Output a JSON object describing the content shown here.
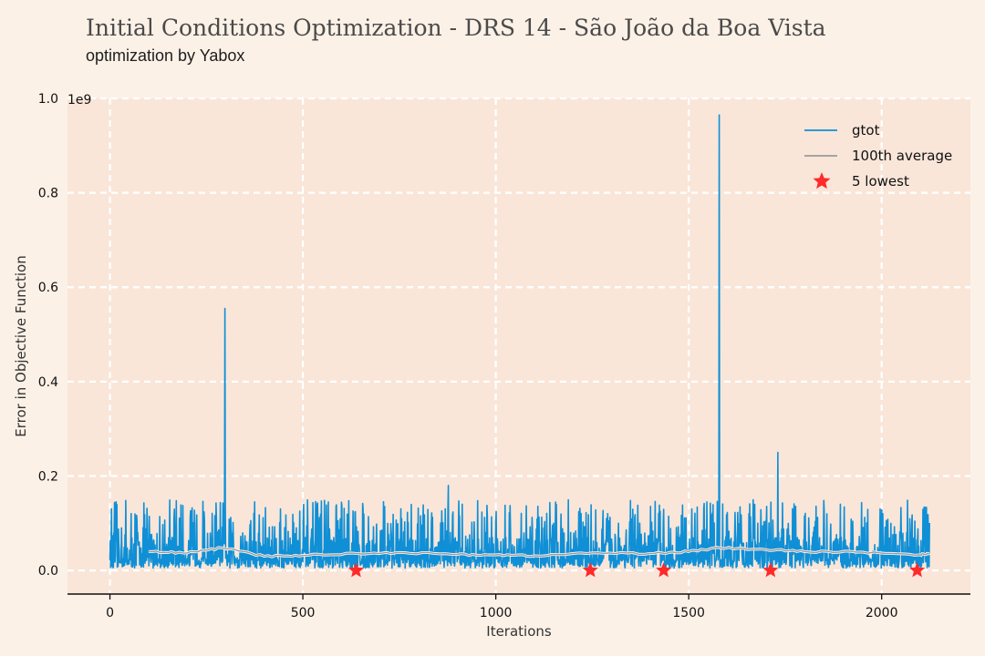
{
  "title": "Initial Conditions Optimization - DRS 14 - São João da Boa Vista",
  "subtitle": "optimization by Yabox",
  "colors": {
    "background": "#fcf1e7",
    "plot_area": "#f9e6d9",
    "grid": "#ffffff",
    "gtot": "#0f8fd6",
    "average": "#9a9a9a",
    "lowest": "#ff2a2a"
  },
  "chart_data": {
    "type": "line",
    "xlabel": "Iterations",
    "ylabel": "Error in Objective Function",
    "y_offset_label": "1e9",
    "xlim": [
      -110,
      2230
    ],
    "ylim": [
      -0.05,
      1.0
    ],
    "grid": true,
    "legend_position": "top-right",
    "x_ticks": [
      0,
      500,
      1000,
      1500,
      2000
    ],
    "y_ticks": [
      0.0,
      0.2,
      0.4,
      0.6,
      0.8,
      1.0
    ],
    "x_tick_labels": [
      "0",
      "500",
      "1000",
      "1500",
      "2000"
    ],
    "y_tick_labels": [
      "0.0",
      "0.2",
      "0.4",
      "0.6",
      "0.8",
      "1.0"
    ],
    "series": [
      {
        "name": "gtot",
        "kind": "noisy-line",
        "n_points": 2125,
        "baseline_range": [
          0.005,
          0.15
        ],
        "spikes": [
          {
            "x": 298,
            "y": 0.555
          },
          {
            "x": 1579,
            "y": 0.965
          },
          {
            "x": 1731,
            "y": 0.25
          },
          {
            "x": 877,
            "y": 0.18
          }
        ]
      },
      {
        "name": "100th average",
        "kind": "rolling-mean",
        "window": 100,
        "x": [
          100,
          200,
          290,
          400,
          500,
          640,
          750,
          900,
          1000,
          1100,
          1250,
          1400,
          1500,
          1580,
          1700,
          1800,
          1950,
          2100,
          2125
        ],
        "y": [
          0.04,
          0.037,
          0.048,
          0.03,
          0.032,
          0.036,
          0.038,
          0.034,
          0.033,
          0.031,
          0.037,
          0.036,
          0.04,
          0.048,
          0.044,
          0.04,
          0.039,
          0.033,
          0.037
        ]
      },
      {
        "name": "5 lowest",
        "kind": "scatter-star",
        "x": [
          638,
          1245,
          1435,
          1712,
          2092
        ],
        "y": [
          0.0,
          0.0,
          0.0,
          0.0,
          0.0
        ]
      }
    ]
  }
}
